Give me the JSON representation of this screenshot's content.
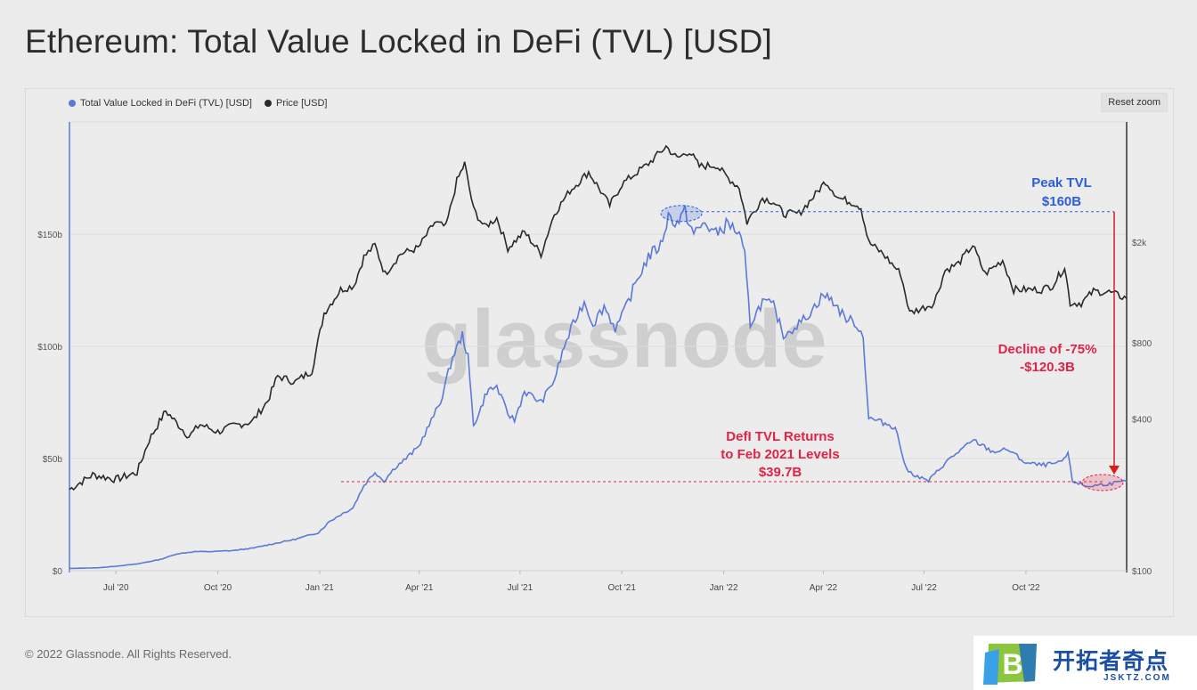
{
  "page": {
    "title": "Ethereum: Total Value Locked in DeFi (TVL) [USD]",
    "footer": "© 2022 Glassnode. All Rights Reserved.",
    "reset_zoom_label": "Reset zoom",
    "watermark": "glassnode"
  },
  "brand": {
    "name": "开拓者奇点",
    "domain": "JSKTZ.COM",
    "logo_letter": "B"
  },
  "chart_data": {
    "type": "line",
    "x_axis": {
      "range": [
        "2020-05-20",
        "2022-12-31"
      ],
      "ticks": [
        "Jul '20",
        "Oct '20",
        "Jan '21",
        "Apr '21",
        "Jul '21",
        "Oct '21",
        "Jan '22",
        "Apr '22",
        "Jul '22",
        "Oct '22"
      ]
    },
    "y_left": {
      "label": "",
      "range": [
        0,
        200
      ],
      "unit": "b",
      "ticks": [
        "$0",
        "$50b",
        "$100b",
        "$150b"
      ]
    },
    "y_right": {
      "label": "",
      "scale": "log",
      "range": [
        100,
        6000
      ],
      "ticks": [
        "$100",
        "$400",
        "$800",
        "$2k"
      ]
    },
    "legend": {
      "position": "top-left"
    },
    "grid": true,
    "colors": {
      "tvl": "#5b7ad8",
      "price": "#2a2a2a",
      "peak": "#2b5fd9",
      "decline": "#e02347",
      "arrow": "#d91c1c"
    },
    "series": [
      {
        "name": "Total Value Locked in DeFi (TVL) [USD]",
        "axis": "left",
        "unit": "billion USD",
        "points": [
          [
            "2020-05-20",
            1.0
          ],
          [
            "2020-06-15",
            1.3
          ],
          [
            "2020-07-01",
            2.0
          ],
          [
            "2020-07-20",
            3.0
          ],
          [
            "2020-08-10",
            5.0
          ],
          [
            "2020-08-25",
            7.5
          ],
          [
            "2020-09-10",
            8.5
          ],
          [
            "2020-09-25",
            8.5
          ],
          [
            "2020-10-15",
            9.0
          ],
          [
            "2020-11-01",
            10.0
          ],
          [
            "2020-11-20",
            12.0
          ],
          [
            "2020-12-10",
            14.0
          ],
          [
            "2020-12-31",
            17.0
          ],
          [
            "2021-01-10",
            22.0
          ],
          [
            "2021-01-20",
            25.0
          ],
          [
            "2021-01-31",
            28.0
          ],
          [
            "2021-02-10",
            38.0
          ],
          [
            "2021-02-20",
            44.0
          ],
          [
            "2021-02-28",
            40.0
          ],
          [
            "2021-03-10",
            46.0
          ],
          [
            "2021-03-20",
            50.0
          ],
          [
            "2021-03-31",
            55.0
          ],
          [
            "2021-04-10",
            65.0
          ],
          [
            "2021-04-20",
            75.0
          ],
          [
            "2021-05-01",
            95.0
          ],
          [
            "2021-05-10",
            105.0
          ],
          [
            "2021-05-15",
            95.0
          ],
          [
            "2021-05-20",
            65.0
          ],
          [
            "2021-05-25",
            70.0
          ],
          [
            "2021-06-01",
            80.0
          ],
          [
            "2021-06-10",
            82.0
          ],
          [
            "2021-06-20",
            70.0
          ],
          [
            "2021-06-26",
            67.0
          ],
          [
            "2021-07-05",
            80.0
          ],
          [
            "2021-07-20",
            75.0
          ],
          [
            "2021-08-01",
            85.0
          ],
          [
            "2021-08-10",
            100.0
          ],
          [
            "2021-08-20",
            112.0
          ],
          [
            "2021-08-28",
            120.0
          ],
          [
            "2021-09-05",
            110.0
          ],
          [
            "2021-09-15",
            118.0
          ],
          [
            "2021-09-25",
            108.0
          ],
          [
            "2021-10-01",
            113.0
          ],
          [
            "2021-10-15",
            130.0
          ],
          [
            "2021-10-25",
            140.0
          ],
          [
            "2021-11-05",
            145.0
          ],
          [
            "2021-11-12",
            158.0
          ],
          [
            "2021-11-20",
            155.0
          ],
          [
            "2021-11-27",
            160.0
          ],
          [
            "2021-12-05",
            150.0
          ],
          [
            "2021-12-15",
            155.0
          ],
          [
            "2021-12-25",
            150.0
          ],
          [
            "2022-01-05",
            155.0
          ],
          [
            "2022-01-15",
            150.0
          ],
          [
            "2022-01-20",
            140.0
          ],
          [
            "2022-01-25",
            110.0
          ],
          [
            "2022-02-05",
            120.0
          ],
          [
            "2022-02-15",
            118.0
          ],
          [
            "2022-02-24",
            105.0
          ],
          [
            "2022-03-10",
            110.0
          ],
          [
            "2022-03-20",
            115.0
          ],
          [
            "2022-04-01",
            123.0
          ],
          [
            "2022-04-10",
            120.0
          ],
          [
            "2022-04-20",
            113.0
          ],
          [
            "2022-05-01",
            110.0
          ],
          [
            "2022-05-07",
            104.0
          ],
          [
            "2022-05-12",
            68.0
          ],
          [
            "2022-05-25",
            66.0
          ],
          [
            "2022-06-05",
            64.0
          ],
          [
            "2022-06-15",
            45.0
          ],
          [
            "2022-06-25",
            42.0
          ],
          [
            "2022-07-05",
            40.0
          ],
          [
            "2022-07-20",
            48.0
          ],
          [
            "2022-08-01",
            53.0
          ],
          [
            "2022-08-15",
            58.0
          ],
          [
            "2022-09-01",
            53.0
          ],
          [
            "2022-09-15",
            54.0
          ],
          [
            "2022-10-01",
            48.0
          ],
          [
            "2022-10-15",
            47.0
          ],
          [
            "2022-11-01",
            48.0
          ],
          [
            "2022-11-08",
            52.0
          ],
          [
            "2022-11-12",
            40.0
          ],
          [
            "2022-11-25",
            37.5
          ],
          [
            "2022-12-10",
            38.5
          ],
          [
            "2022-12-31",
            39.7
          ]
        ]
      },
      {
        "name": "Price [USD]",
        "axis": "right",
        "unit": "USD",
        "points": [
          [
            "2020-05-20",
            210
          ],
          [
            "2020-06-10",
            240
          ],
          [
            "2020-07-01",
            230
          ],
          [
            "2020-07-20",
            245
          ],
          [
            "2020-07-31",
            330
          ],
          [
            "2020-08-15",
            430
          ],
          [
            "2020-09-05",
            340
          ],
          [
            "2020-09-15",
            380
          ],
          [
            "2020-10-01",
            355
          ],
          [
            "2020-10-15",
            375
          ],
          [
            "2020-11-01",
            390
          ],
          [
            "2020-11-15",
            470
          ],
          [
            "2020-11-24",
            590
          ],
          [
            "2020-12-10",
            560
          ],
          [
            "2020-12-25",
            620
          ],
          [
            "2021-01-05",
            1050
          ],
          [
            "2021-01-20",
            1300
          ],
          [
            "2021-02-01",
            1350
          ],
          [
            "2021-02-10",
            1750
          ],
          [
            "2021-02-20",
            1950
          ],
          [
            "2021-03-01",
            1500
          ],
          [
            "2021-03-15",
            1800
          ],
          [
            "2021-03-31",
            1900
          ],
          [
            "2021-04-15",
            2400
          ],
          [
            "2021-04-25",
            2300
          ],
          [
            "2021-05-05",
            3500
          ],
          [
            "2021-05-12",
            4100
          ],
          [
            "2021-05-20",
            2700
          ],
          [
            "2021-05-30",
            2300
          ],
          [
            "2021-06-10",
            2500
          ],
          [
            "2021-06-20",
            1900
          ],
          [
            "2021-07-05",
            2200
          ],
          [
            "2021-07-20",
            1800
          ],
          [
            "2021-08-01",
            2600
          ],
          [
            "2021-08-15",
            3200
          ],
          [
            "2021-09-01",
            3800
          ],
          [
            "2021-09-10",
            3300
          ],
          [
            "2021-09-20",
            2800
          ],
          [
            "2021-10-01",
            3400
          ],
          [
            "2021-10-15",
            3800
          ],
          [
            "2021-10-25",
            4100
          ],
          [
            "2021-11-10",
            4800
          ],
          [
            "2021-11-20",
            4300
          ],
          [
            "2021-12-01",
            4600
          ],
          [
            "2021-12-10",
            4000
          ],
          [
            "2021-12-25",
            4050
          ],
          [
            "2022-01-05",
            3600
          ],
          [
            "2022-01-15",
            3300
          ],
          [
            "2022-01-22",
            2400
          ],
          [
            "2022-02-05",
            3000
          ],
          [
            "2022-02-15",
            2900
          ],
          [
            "2022-02-24",
            2600
          ],
          [
            "2022-03-10",
            2600
          ],
          [
            "2022-03-25",
            3100
          ],
          [
            "2022-04-03",
            3500
          ],
          [
            "2022-04-15",
            3000
          ],
          [
            "2022-04-30",
            2850
          ],
          [
            "2022-05-05",
            2750
          ],
          [
            "2022-05-12",
            2000
          ],
          [
            "2022-05-25",
            1800
          ],
          [
            "2022-06-10",
            1500
          ],
          [
            "2022-06-18",
            1050
          ],
          [
            "2022-06-30",
            1100
          ],
          [
            "2022-07-10",
            1150
          ],
          [
            "2022-07-20",
            1550
          ],
          [
            "2022-08-01",
            1650
          ],
          [
            "2022-08-14",
            1950
          ],
          [
            "2022-08-25",
            1500
          ],
          [
            "2022-09-10",
            1700
          ],
          [
            "2022-09-20",
            1300
          ],
          [
            "2022-10-01",
            1300
          ],
          [
            "2022-10-15",
            1300
          ],
          [
            "2022-10-25",
            1350
          ],
          [
            "2022-11-05",
            1600
          ],
          [
            "2022-11-10",
            1150
          ],
          [
            "2022-11-20",
            1150
          ],
          [
            "2022-12-01",
            1280
          ],
          [
            "2022-12-15",
            1270
          ],
          [
            "2022-12-31",
            1200
          ]
        ]
      }
    ],
    "annotations": {
      "peak": {
        "lines": [
          "Peak TVL",
          "$160B"
        ],
        "date": "2021-11-27",
        "value": 160
      },
      "decline": {
        "lines": [
          "Decline of -75%",
          "-$120.3B"
        ]
      },
      "returns": {
        "lines": [
          "DefI TVL Returns",
          "to Feb 2021 Levels",
          "$39.7B"
        ],
        "value": 39.7
      }
    }
  }
}
